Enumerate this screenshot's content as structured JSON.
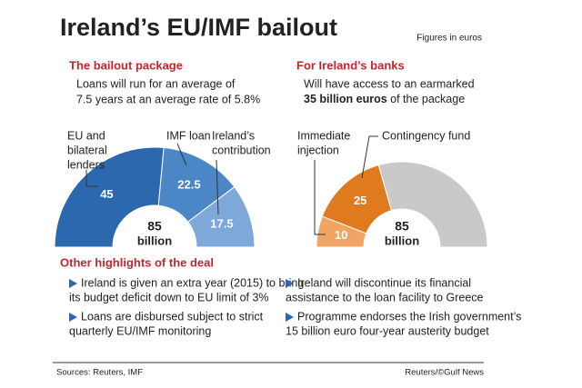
{
  "title": "Ireland’s EU/IMF bailout",
  "note": "Figures in euros",
  "chart_data": [
    {
      "type": "semidonut",
      "title": "The bailout package",
      "subtitle": [
        "Loans will run for an average of",
        "7.5 years at an average rate of 5.8%"
      ],
      "categories": [
        [
          "EU and",
          "bilateral",
          "lenders"
        ],
        [
          "IMF loan"
        ],
        [
          "Ireland’s",
          "contribution"
        ]
      ],
      "values": [
        45,
        22.5,
        17.5
      ],
      "colors": [
        "#2b68ad",
        "#4b87c6",
        "#7ea8d9"
      ],
      "total": 85,
      "total_label": "billion"
    },
    {
      "type": "semidonut",
      "title": "For Ireland’s banks",
      "subtitle": [
        "Will have access to an earmarked"
      ],
      "subtitle_bold": "35 billion euros",
      "subtitle_end": " of the package",
      "categories": [
        [
          "Immediate",
          "injection"
        ],
        [
          "Contingency fund"
        ],
        null
      ],
      "values": [
        10,
        25,
        50
      ],
      "colors": [
        "#f0a564",
        "#e07a1e",
        "#c9c9c9"
      ],
      "total": 85,
      "total_label": "billion"
    }
  ],
  "highlights": {
    "title": "Other highlights of the deal",
    "items": [
      [
        "Ireland is given an extra year (2015) to bring",
        "its budget deficit down to EU limit of 3%"
      ],
      [
        "Loans are disbursed subject to strict",
        "quarterly EU/IMF monitoring"
      ],
      [
        "Ireland will discontinue its financial",
        "assistance to the loan facility to Greece"
      ],
      [
        "Programme endorses the Irish government’s",
        "15 billion euro four-year austerity budget"
      ]
    ]
  },
  "sources": "Sources: Reuters, IMF",
  "credit": "Reuters/©Gulf News"
}
